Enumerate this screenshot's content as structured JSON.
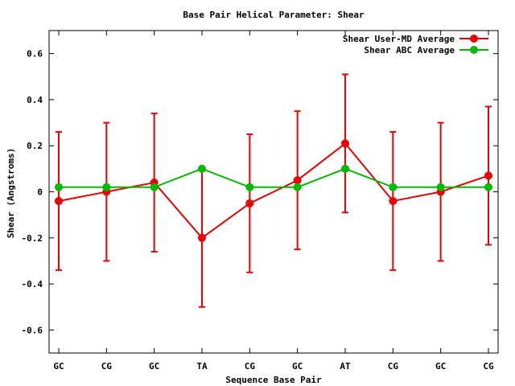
{
  "chart_data": {
    "type": "line",
    "title": "Base Pair Helical Parameter: Shear",
    "xlabel": "Sequence Base Pair",
    "ylabel": "Shear (Angstroms)",
    "categories": [
      "GC",
      "CG",
      "GC",
      "TA",
      "CG",
      "GC",
      "AT",
      "CG",
      "GC",
      "CG"
    ],
    "ylim": [
      -0.7,
      0.7
    ],
    "yticks": [
      -0.6,
      -0.4,
      -0.2,
      0,
      0.2,
      0.4,
      0.6
    ],
    "ytick_labels": [
      "-0.6",
      "-0.4",
      "-0.2",
      "0",
      "0.2",
      "0.4",
      "0.6"
    ],
    "grid": false,
    "legend_position": "top-right",
    "series": [
      {
        "name": "Shear User-MD Average",
        "color": "#ee0000",
        "values": [
          -0.04,
          0.0,
          0.04,
          -0.2,
          -0.05,
          0.05,
          0.21,
          -0.04,
          0.0,
          0.07
        ],
        "error": [
          0.3,
          0.3,
          0.3,
          0.3,
          0.3,
          0.3,
          0.3,
          0.3,
          0.3,
          0.3
        ]
      },
      {
        "name": "Shear ABC Average",
        "color": "#00bb00",
        "values": [
          0.02,
          0.02,
          0.02,
          0.1,
          0.02,
          0.02,
          0.1,
          0.02,
          0.02,
          0.02
        ]
      }
    ]
  }
}
